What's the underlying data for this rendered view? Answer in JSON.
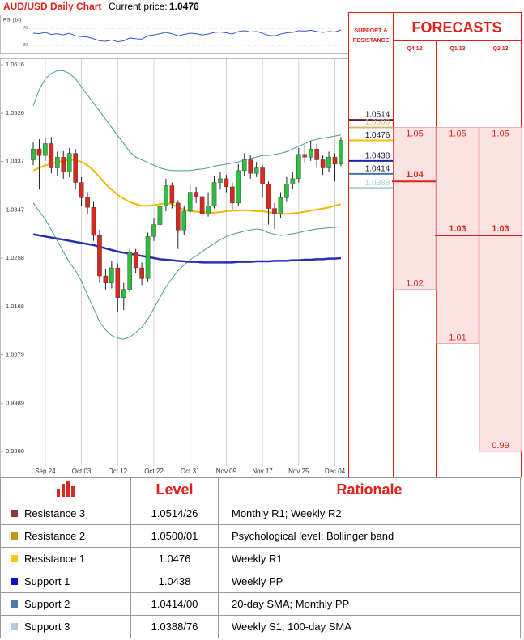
{
  "header": {
    "title": "AUD/USD Daily Chart",
    "price_label": "Current price:",
    "price": "1.0476"
  },
  "chart_data": [
    {
      "type": "line",
      "title": "RSI (14)",
      "color": "#3a55c8",
      "values": [
        58,
        57,
        60,
        55,
        57,
        54,
        58,
        52,
        50,
        49,
        45,
        40,
        39,
        42,
        38,
        40,
        47,
        45,
        44,
        52,
        54,
        57,
        60,
        57,
        52,
        55,
        58,
        57,
        54,
        56,
        60,
        61,
        59,
        56,
        62,
        64,
        61,
        62,
        58,
        53,
        52,
        56,
        59,
        60,
        64,
        63,
        65,
        62,
        60,
        62,
        61,
        66
      ],
      "ylim": [
        20,
        100
      ],
      "yticks": [
        70,
        30
      ]
    },
    {
      "type": "candlestick",
      "categories": [
        null,
        null,
        "Sep 24",
        null,
        null,
        null,
        null,
        null,
        "Oct 03",
        null,
        null,
        null,
        null,
        null,
        "Oct 12",
        null,
        null,
        null,
        null,
        null,
        "Oct 22",
        null,
        null,
        null,
        null,
        null,
        "Oct 31",
        null,
        null,
        null,
        null,
        null,
        "Nov 09",
        null,
        null,
        null,
        null,
        null,
        "Nov 17",
        null,
        null,
        null,
        null,
        null,
        "Nov 25",
        null,
        null,
        null,
        null,
        null,
        "Dec 04",
        null
      ],
      "open": [
        1.044,
        1.046,
        1.0448,
        1.047,
        1.0425,
        1.0445,
        1.0418,
        1.0452,
        1.0398,
        1.037,
        1.0352,
        1.03,
        1.0225,
        1.0212,
        1.024,
        1.0185,
        1.02,
        1.0268,
        1.024,
        1.022,
        1.0298,
        1.032,
        1.0355,
        1.0392,
        1.036,
        1.031,
        1.0345,
        1.038,
        1.0372,
        1.034,
        1.0355,
        1.0398,
        1.0405,
        1.039,
        1.036,
        1.042,
        1.044,
        1.0415,
        1.0425,
        1.0395,
        1.035,
        1.034,
        1.037,
        1.0395,
        1.0405,
        1.045,
        1.0445,
        1.046,
        1.044,
        1.0425,
        1.0445,
        1.0432
      ],
      "high": [
        1.0472,
        1.0478,
        1.048,
        1.0482,
        1.0455,
        1.0456,
        1.0462,
        1.046,
        1.0408,
        1.038,
        1.0362,
        1.031,
        1.0238,
        1.0252,
        1.0248,
        1.0212,
        1.0276,
        1.0275,
        1.025,
        1.0305,
        1.0332,
        1.0368,
        1.0405,
        1.0398,
        1.0365,
        1.0355,
        1.0392,
        1.039,
        1.0378,
        1.038,
        1.041,
        1.0418,
        1.0412,
        1.0398,
        1.0432,
        1.0452,
        1.0448,
        1.0436,
        1.043,
        1.04,
        1.036,
        1.038,
        1.0408,
        1.0418,
        1.0462,
        1.0468,
        1.0475,
        1.047,
        1.0448,
        1.0455,
        1.0452,
        1.0482
      ],
      "low": [
        1.043,
        1.0385,
        1.0438,
        1.0415,
        1.041,
        1.0405,
        1.0408,
        1.0385,
        1.0355,
        1.034,
        1.029,
        1.0212,
        1.02,
        1.0202,
        1.0158,
        1.0162,
        1.0195,
        1.023,
        1.0208,
        1.0215,
        1.029,
        1.031,
        1.0345,
        1.035,
        1.0275,
        1.03,
        1.0338,
        1.036,
        1.033,
        1.0335,
        1.035,
        1.0385,
        1.038,
        1.0348,
        1.0355,
        1.041,
        1.0405,
        1.0408,
        1.037,
        1.032,
        1.0312,
        1.0332,
        1.0362,
        1.0385,
        1.0398,
        1.0435,
        1.0438,
        1.0425,
        1.0412,
        1.0418,
        1.04,
        1.0428
      ],
      "close": [
        1.046,
        1.0448,
        1.047,
        1.0425,
        1.0445,
        1.0418,
        1.0452,
        1.0398,
        1.037,
        1.0352,
        1.03,
        1.0225,
        1.0212,
        1.024,
        1.0185,
        1.02,
        1.0268,
        1.024,
        1.022,
        1.0298,
        1.032,
        1.0355,
        1.0392,
        1.036,
        1.031,
        1.0345,
        1.038,
        1.0372,
        1.034,
        1.0355,
        1.0398,
        1.0405,
        1.039,
        1.036,
        1.042,
        1.044,
        1.0415,
        1.0425,
        1.0395,
        1.035,
        1.034,
        1.037,
        1.0395,
        1.0405,
        1.045,
        1.0445,
        1.046,
        1.044,
        1.0425,
        1.0445,
        1.0432,
        1.0476
      ],
      "up_color": "#2fbf3f",
      "down_color": "#d42a1f",
      "overlays": [
        {
          "color": "#4a9a9a",
          "width": 1,
          "values": [
            1.054,
            1.057,
            1.059,
            1.06,
            1.0605,
            1.0605,
            1.06,
            1.059,
            1.0575,
            1.056,
            1.0545,
            1.053,
            1.0515,
            1.05,
            1.0485,
            1.047,
            1.0455,
            1.0445,
            1.044,
            1.0435,
            1.043,
            1.0425,
            1.0422,
            1.042,
            1.042,
            1.042,
            1.042,
            1.0422,
            1.0423,
            1.0425,
            1.0428,
            1.043,
            1.0432,
            1.0434,
            1.0436,
            1.044,
            1.0442,
            1.0445,
            1.0448,
            1.0448,
            1.045,
            1.0452,
            1.0455,
            1.046,
            1.0465,
            1.047,
            1.0475,
            1.0478,
            1.048,
            1.0482,
            1.0484,
            1.0486
          ]
        },
        {
          "color": "#4a9a9a",
          "width": 1,
          "values": [
            1.036,
            1.0345,
            1.033,
            1.031,
            1.029,
            1.027,
            1.025,
            1.0235,
            1.0215,
            1.019,
            1.0165,
            1.014,
            1.0125,
            1.0115,
            1.011,
            1.0108,
            1.0112,
            1.012,
            1.013,
            1.0145,
            1.0165,
            1.0185,
            1.0205,
            1.022,
            1.0235,
            1.0245,
            1.0255,
            1.0262,
            1.027,
            1.0278,
            1.0285,
            1.0292,
            1.0298,
            1.0302,
            1.0305,
            1.0308,
            1.031,
            1.0312,
            1.031,
            1.0305,
            1.0302,
            1.03,
            1.0301,
            1.0303,
            1.0305,
            1.0308,
            1.031,
            1.0312,
            1.0313,
            1.0314,
            1.0315,
            1.0316
          ]
        },
        {
          "color": "#f2b705",
          "width": 2,
          "values": [
            1.042,
            1.0425,
            1.043,
            1.0433,
            1.0436,
            1.0438,
            1.044,
            1.044,
            1.0436,
            1.043,
            1.042,
            1.0408,
            1.0395,
            1.0385,
            1.0375,
            1.0368,
            1.0362,
            1.0358,
            1.0355,
            1.0355,
            1.0356,
            1.0358,
            1.036,
            1.0358,
            1.0352,
            1.0348,
            1.0345,
            1.0344,
            1.0343,
            1.0342,
            1.0342,
            1.0343,
            1.0345,
            1.0346,
            1.0346,
            1.0347,
            1.0346,
            1.0345,
            1.0345,
            1.0343,
            1.0341,
            1.034,
            1.034,
            1.0341,
            1.0342,
            1.0344,
            1.0346,
            1.0348,
            1.035,
            1.0352,
            1.0355,
            1.0358
          ]
        },
        {
          "color": "#2a2fb0",
          "width": 2.5,
          "values": [
            1.0302,
            1.03,
            1.0298,
            1.0296,
            1.0294,
            1.0292,
            1.029,
            1.0288,
            1.0286,
            1.0284,
            1.0282,
            1.0279,
            1.0276,
            1.0273,
            1.027,
            1.0268,
            1.0266,
            1.0264,
            1.0262,
            1.026,
            1.0258,
            1.0256,
            1.0255,
            1.0254,
            1.0253,
            1.0252,
            1.0251,
            1.0251,
            1.025,
            1.025,
            1.025,
            1.025,
            1.025,
            1.025,
            1.0251,
            1.0251,
            1.0251,
            1.0252,
            1.0252,
            1.0252,
            1.0253,
            1.0253,
            1.0253,
            1.0254,
            1.0254,
            1.0255,
            1.0255,
            1.0256,
            1.0256,
            1.0257,
            1.0257,
            1.0258
          ]
        }
      ],
      "ylim": [
        0.99,
        1.0616
      ],
      "yticks": [
        1.0616,
        1.0526,
        1.0437,
        1.0347,
        1.0258,
        1.0168,
        1.0079,
        0.9989,
        {
          "value": 0.99,
          "label": "0.9900"
        }
      ],
      "x_grid": true,
      "levels_title": "SUPPORT & RESISTANCE",
      "levels": [
        {
          "value": 1.0514,
          "color": "#5a1a3c"
        },
        {
          "value": 1.05,
          "label": "1.0500",
          "color": "#d9b77a"
        },
        {
          "value": 1.0476,
          "color": "#f2c200"
        },
        {
          "value": 1.0438,
          "color": "#1a2aa8"
        },
        {
          "value": 1.0414,
          "color": "#3f78a8"
        },
        {
          "value": 1.0388,
          "color": "#a9cfd6"
        }
      ],
      "forecasts_title": "FORECASTS",
      "forecasts": [
        {
          "label": "Q4 12",
          "values": [
            1.05,
            1.04,
            1.02
          ]
        },
        {
          "label": "Q1 13",
          "values": [
            1.05,
            1.03,
            1.01
          ]
        },
        {
          "label": "Q2 13",
          "values": [
            1.05,
            1.03,
            0.99
          ]
        }
      ]
    }
  ],
  "table": {
    "headers": [
      "Level",
      "Rationale"
    ],
    "rows": [
      {
        "color": "#8b3a3a",
        "name": "Resistance 3",
        "level": "1.0514/26",
        "rationale": "Monthly R1; Weekly R2"
      },
      {
        "color": "#c9971c",
        "name": "Resistance 2",
        "level": "1.0500/01",
        "rationale": "Psychological level; Bollinger band"
      },
      {
        "color": "#f5c518",
        "name": "Resistance 1",
        "level": "1.0476",
        "rationale": "Weekly R1"
      },
      {
        "color": "#1010c8",
        "name": "Support 1",
        "level": "1.0438",
        "rationale": "Weekly PP"
      },
      {
        "color": "#4a7ab5",
        "name": "Support 2",
        "level": "1.0414/00",
        "rationale": "20-day SMA; Monthly PP"
      },
      {
        "color": "#b4c8dc",
        "name": "Support 3",
        "level": "1.0388/76",
        "rationale": "Weekly S1; 100-day SMA"
      }
    ]
  }
}
